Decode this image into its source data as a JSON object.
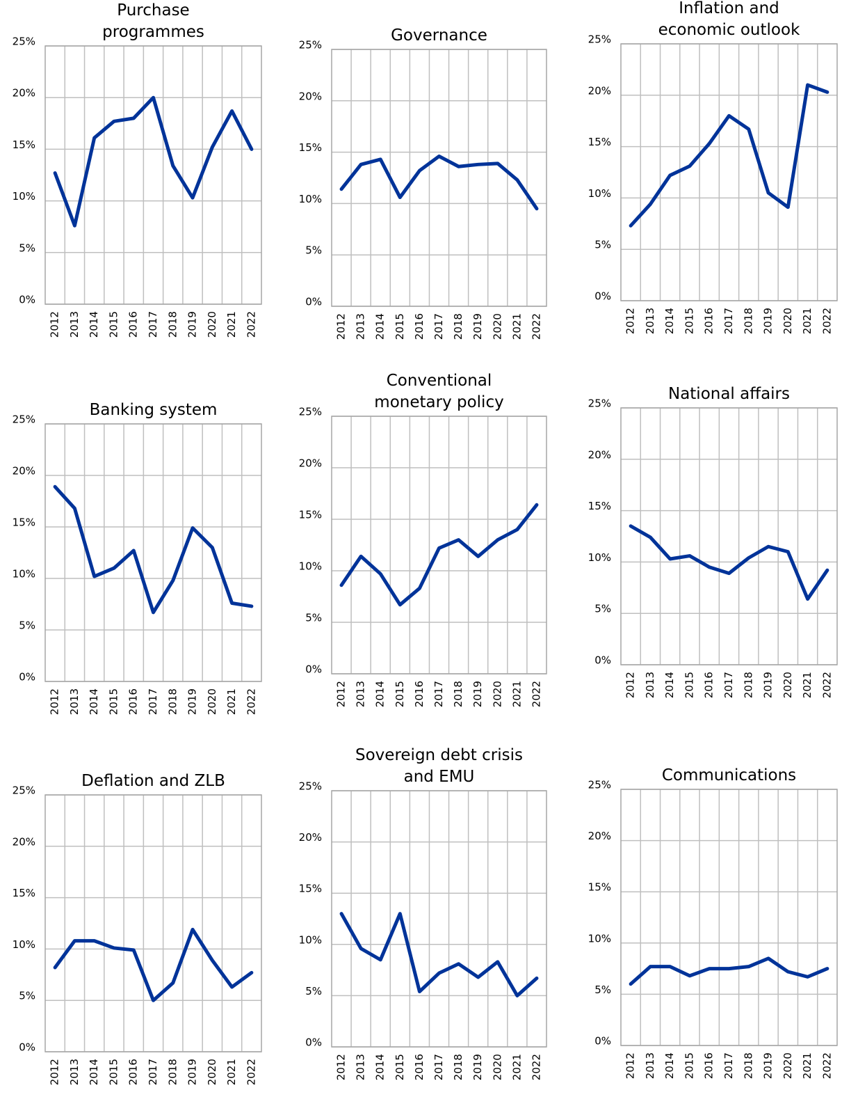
{
  "chart_data": [
    {
      "type": "line",
      "title": "Purchase programmes",
      "categories": [
        "2012",
        "2013",
        "2014",
        "2015",
        "2016",
        "2017",
        "2018",
        "2019",
        "2020",
        "2021",
        "2022"
      ],
      "values": [
        12.7,
        7.6,
        16.1,
        17.7,
        18.0,
        20.0,
        13.4,
        10.3,
        15.2,
        18.7,
        15.0
      ],
      "color": "#003399",
      "ylim": [
        0,
        25
      ],
      "yticks": [
        {
          "value": 0,
          "label": "0%"
        },
        {
          "value": 5,
          "label": "5%"
        },
        {
          "value": 10,
          "label": "10%"
        },
        {
          "value": 15,
          "label": "15%"
        },
        {
          "value": 20,
          "label": "20%"
        },
        {
          "value": 25,
          "label": "25%"
        }
      ],
      "grid": true
    },
    {
      "type": "line",
      "title": "Governance",
      "categories": [
        "2012",
        "2013",
        "2014",
        "2015",
        "2016",
        "2017",
        "2018",
        "2019",
        "2020",
        "2021",
        "2022"
      ],
      "values": [
        11.4,
        13.8,
        14.3,
        10.6,
        13.2,
        14.6,
        13.6,
        13.8,
        13.9,
        12.3,
        9.5
      ],
      "color": "#003399",
      "ylim": [
        0,
        25
      ],
      "yticks": [
        {
          "value": 0,
          "label": "0%"
        },
        {
          "value": 5,
          "label": "5%"
        },
        {
          "value": 10,
          "label": "10%"
        },
        {
          "value": 15,
          "label": "15%"
        },
        {
          "value": 20,
          "label": "20%"
        },
        {
          "value": 25,
          "label": "25%"
        }
      ],
      "grid": true
    },
    {
      "type": "line",
      "title": "Inflation and economic outlook",
      "categories": [
        "2012",
        "2013",
        "2014",
        "2015",
        "2016",
        "2017",
        "2018",
        "2019",
        "2020",
        "2021",
        "2022"
      ],
      "values": [
        7.3,
        9.4,
        12.2,
        13.1,
        15.3,
        18.0,
        16.7,
        10.5,
        9.1,
        21.0,
        20.3
      ],
      "color": "#003399",
      "ylim": [
        0,
        25
      ],
      "yticks": [
        {
          "value": 0,
          "label": "0%"
        },
        {
          "value": 5,
          "label": "5%"
        },
        {
          "value": 10,
          "label": "10%"
        },
        {
          "value": 15,
          "label": "15%"
        },
        {
          "value": 20,
          "label": "20%"
        },
        {
          "value": 25,
          "label": "25%"
        }
      ],
      "grid": true
    },
    {
      "type": "line",
      "title": "Banking system",
      "categories": [
        "2012",
        "2013",
        "2014",
        "2015",
        "2016",
        "2017",
        "2018",
        "2019",
        "2020",
        "2021",
        "2022"
      ],
      "values": [
        18.9,
        16.8,
        10.2,
        11.0,
        12.7,
        6.7,
        9.8,
        14.9,
        13.0,
        7.6,
        7.3
      ],
      "color": "#003399",
      "ylim": [
        0,
        25
      ],
      "yticks": [
        {
          "value": 0,
          "label": "0%"
        },
        {
          "value": 5,
          "label": "5%"
        },
        {
          "value": 10,
          "label": "10%"
        },
        {
          "value": 15,
          "label": "15%"
        },
        {
          "value": 20,
          "label": "20%"
        },
        {
          "value": 25,
          "label": "25%"
        }
      ],
      "grid": true
    },
    {
      "type": "line",
      "title": "Conventional monetary policy",
      "categories": [
        "2012",
        "2013",
        "2014",
        "2015",
        "2016",
        "2017",
        "2018",
        "2019",
        "2020",
        "2021",
        "2022"
      ],
      "values": [
        8.6,
        11.4,
        9.7,
        6.7,
        8.3,
        12.2,
        13.0,
        11.4,
        13.0,
        14.0,
        16.4
      ],
      "color": "#003399",
      "ylim": [
        0,
        25
      ],
      "yticks": [
        {
          "value": 0,
          "label": "0%"
        },
        {
          "value": 5,
          "label": "5%"
        },
        {
          "value": 10,
          "label": "10%"
        },
        {
          "value": 15,
          "label": "15%"
        },
        {
          "value": 20,
          "label": "20%"
        },
        {
          "value": 25,
          "label": "25%"
        }
      ],
      "grid": true
    },
    {
      "type": "line",
      "title": "National affairs",
      "categories": [
        "2012",
        "2013",
        "2014",
        "2015",
        "2016",
        "2017",
        "2018",
        "2019",
        "2020",
        "2021",
        "2022"
      ],
      "values": [
        13.5,
        12.4,
        10.3,
        10.6,
        9.5,
        8.9,
        10.4,
        11.5,
        11.0,
        6.4,
        9.2
      ],
      "color": "#003399",
      "ylim": [
        0,
        25
      ],
      "yticks": [
        {
          "value": 0,
          "label": "0%"
        },
        {
          "value": 5,
          "label": "5%"
        },
        {
          "value": 10,
          "label": "10%"
        },
        {
          "value": 15,
          "label": "15%"
        },
        {
          "value": 20,
          "label": "20%"
        },
        {
          "value": 25,
          "label": "25%"
        }
      ],
      "grid": true
    },
    {
      "type": "line",
      "title": "Deflation and ZLB",
      "categories": [
        "2012",
        "2013",
        "2014",
        "2015",
        "2016",
        "2017",
        "2018",
        "2019",
        "2020",
        "2021",
        "2022"
      ],
      "values": [
        8.2,
        10.8,
        10.8,
        10.1,
        9.9,
        5.0,
        6.7,
        11.9,
        8.9,
        6.3,
        7.7
      ],
      "color": "#003399",
      "ylim": [
        0,
        25
      ],
      "yticks": [
        {
          "value": 0,
          "label": "0%"
        },
        {
          "value": 5,
          "label": "5%"
        },
        {
          "value": 10,
          "label": "10%"
        },
        {
          "value": 15,
          "label": "15%"
        },
        {
          "value": 20,
          "label": "20%"
        },
        {
          "value": 25,
          "label": "25%"
        }
      ],
      "grid": true
    },
    {
      "type": "line",
      "title": "Sovereign debt crisis and EMU",
      "categories": [
        "2012",
        "2013",
        "2014",
        "2015",
        "2016",
        "2017",
        "2018",
        "2019",
        "2020",
        "2021",
        "2022"
      ],
      "values": [
        13.0,
        9.6,
        8.5,
        13.0,
        5.4,
        7.2,
        8.1,
        6.8,
        8.3,
        5.0,
        6.7
      ],
      "color": "#003399",
      "ylim": [
        0,
        25
      ],
      "yticks": [
        {
          "value": 0,
          "label": "0%"
        },
        {
          "value": 5,
          "label": "5%"
        },
        {
          "value": 10,
          "label": "10%"
        },
        {
          "value": 15,
          "label": "15%"
        },
        {
          "value": 20,
          "label": "20%"
        },
        {
          "value": 25,
          "label": "25%"
        }
      ],
      "grid": true
    },
    {
      "type": "line",
      "title": "Communications",
      "categories": [
        "2012",
        "2013",
        "2014",
        "2015",
        "2016",
        "2017",
        "2018",
        "2019",
        "2020",
        "2021",
        "2022"
      ],
      "values": [
        6.0,
        7.7,
        7.7,
        6.8,
        7.5,
        7.5,
        7.7,
        8.5,
        7.2,
        6.7,
        7.5
      ],
      "color": "#003399",
      "ylim": [
        0,
        25
      ],
      "yticks": [
        {
          "value": 0,
          "label": "0%"
        },
        {
          "value": 5,
          "label": "5%"
        },
        {
          "value": 10,
          "label": "10%"
        },
        {
          "value": 15,
          "label": "15%"
        },
        {
          "value": 20,
          "label": "20%"
        },
        {
          "value": 25,
          "label": "25%"
        }
      ],
      "grid": true
    }
  ]
}
